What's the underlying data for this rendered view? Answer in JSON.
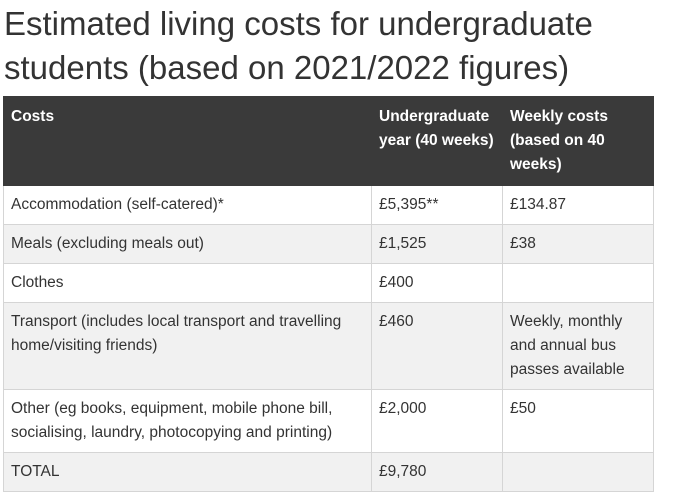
{
  "header": {
    "title": "Estimated living costs for undergraduate students (based on 2021/2022 figures)"
  },
  "table": {
    "headers": [
      "Costs",
      "Undergraduate year (40 weeks)",
      "Weekly costs (based on 40 weeks)"
    ],
    "rows": [
      [
        "Accommodation (self-catered)*",
        "£5,395**",
        "£134.87"
      ],
      [
        "Meals (excluding meals out)",
        "£1,525",
        "£38"
      ],
      [
        "Clothes",
        "£400",
        null
      ],
      [
        "Transport (includes local transport and travelling home/visiting friends)",
        "£460",
        "Weekly, monthly and annual bus passes available"
      ],
      [
        "Other (eg books, equipment, mobile phone bill, socialising, laundry, photocopying and printing)",
        "£2,000",
        "£50"
      ],
      [
        "TOTAL",
        "£9,780",
        null
      ]
    ]
  }
}
